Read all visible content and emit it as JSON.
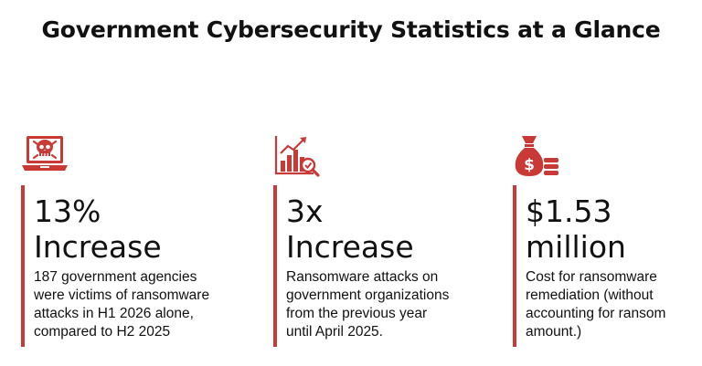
{
  "title": "Government Cybersecurity Statistics at a Glance",
  "accent_color": "#c93a36",
  "stats": [
    {
      "icon": "laptop-skull-icon",
      "value_line1": "13%",
      "value_line2": "Increase",
      "desc_lines": [
        "187 government agencies",
        "were victims of ransomware",
        "attacks in H1 2026 alone,",
        "compared to H2 2025"
      ]
    },
    {
      "icon": "rising-chart-magnifier-icon",
      "value_line1": "3x",
      "value_line2": "Increase",
      "desc_lines": [
        "Ransomware attacks on",
        "government organizations",
        "from the previous year",
        "until April 2025."
      ]
    },
    {
      "icon": "money-bag-coins-icon",
      "value_line1": "$1.53",
      "value_line2": "million",
      "desc_lines": [
        "Cost for ransomware",
        "remediation (without",
        "accounting for ransom",
        "amount.)"
      ]
    }
  ]
}
